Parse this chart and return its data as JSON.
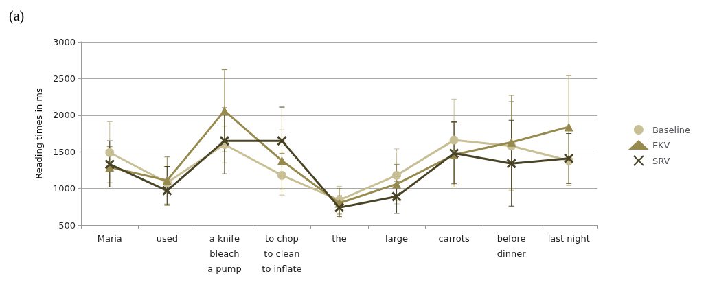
{
  "chart_data": {
    "type": "line",
    "title": "(a)",
    "ylabel": "Reading times in ms",
    "categories": [
      "Maria",
      "used",
      "a knife\nbleach\na pump",
      "to chop\nto clean\nto inflate",
      "the",
      "large",
      "carrots",
      "before\ndinner",
      "last night"
    ],
    "ylim": [
      500,
      3000
    ],
    "yticks": [
      500,
      1000,
      1500,
      2000,
      2500,
      3000
    ],
    "grid": "y",
    "legend": "right",
    "line_style": "solid",
    "series": [
      {
        "name": "Baseline",
        "color": "#c8bf94",
        "marker": "circle",
        "values": [
          1490,
          1080,
          1600,
          1180,
          840,
          1180,
          1660,
          1580,
          1380
        ],
        "errors": [
          [
            1080,
            1910
          ],
          [
            790,
            1320
          ],
          [
            1350,
            1850
          ],
          [
            910,
            1800
          ],
          [
            600,
            1030
          ],
          [
            790,
            1540
          ],
          [
            1020,
            2220
          ],
          [
            970,
            2190
          ],
          [
            1040,
            1750
          ]
        ]
      },
      {
        "name": "EKV",
        "color": "#968a4f",
        "marker": "triangle",
        "values": [
          1290,
          1110,
          2060,
          1380,
          800,
          1060,
          1460,
          1630,
          1840
        ],
        "errors": [
          [
            1020,
            1570
          ],
          [
            770,
            1430
          ],
          [
            1500,
            2620
          ],
          [
            990,
            1480
          ],
          [
            650,
            1000
          ],
          [
            840,
            1330
          ],
          [
            1050,
            1900
          ],
          [
            990,
            2270
          ],
          [
            1070,
            2540
          ]
        ]
      },
      {
        "name": "SRV",
        "color": "#4a4427",
        "marker": "cross",
        "values": [
          1330,
          970,
          1650,
          1650,
          740,
          890,
          1480,
          1340,
          1410
        ],
        "errors": [
          [
            1020,
            1650
          ],
          [
            780,
            1300
          ],
          [
            1200,
            2100
          ],
          [
            1650,
            2110
          ],
          [
            620,
            900
          ],
          [
            660,
            1100
          ],
          [
            1070,
            1910
          ],
          [
            760,
            1930
          ],
          [
            1070,
            1750
          ]
        ]
      }
    ]
  }
}
